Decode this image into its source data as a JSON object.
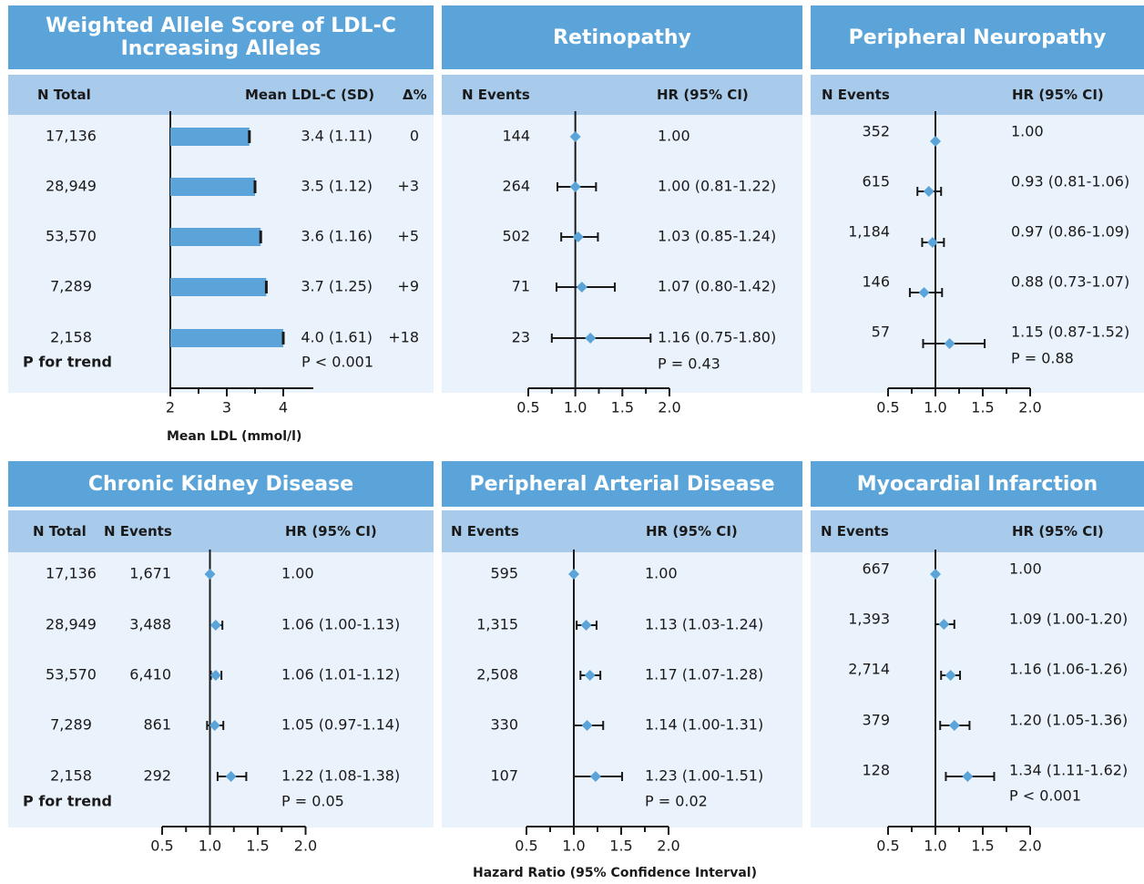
{
  "colors": {
    "title_bg": "#5aa4d9",
    "header_bg": "#a9cbeb",
    "panel_bg": "#eaf2fb",
    "marker": "#5aa4d9",
    "bar": "#5aa4d9"
  },
  "panels": {
    "allele": {
      "title": "Weighted Allele Score of LDL-C Increasing Alleles",
      "h1": "N Total",
      "h2": "Mean LDL-C (SD)",
      "h3": "Δ%",
      "footer": "P for trend",
      "pvalue": "P < 0.001",
      "xlabel": "Mean LDL (mmol/l)"
    },
    "ret": {
      "title": "Retinopathy",
      "h1": "N Events",
      "h2": "HR (95% CI)",
      "pvalue": "P = 0.43"
    },
    "neu": {
      "title": "Peripheral Neuropathy",
      "h1": "N Events",
      "h2": "HR (95% CI)",
      "pvalue": "P = 0.88"
    },
    "ckd": {
      "title": "Chronic Kidney Disease",
      "h1": "N Total",
      "h2": "N Events",
      "h3": "HR (95% CI)",
      "footer": "P for trend",
      "pvalue": "P = 0.05"
    },
    "pad": {
      "title": "Peripheral Arterial Disease",
      "h1": "N Events",
      "h2": "HR (95% CI)",
      "pvalue": "P = 0.02",
      "xlabel": "Hazard Ratio (95% Confidence Interval)"
    },
    "mi": {
      "title": "Myocardial Infarction",
      "h1": "N Events",
      "h2": "HR (95% CI)",
      "pvalue": "P < 0.001"
    }
  },
  "chart_data": [
    {
      "id": "allele",
      "type": "bar",
      "title": "Weighted Allele Score of LDL-C Increasing Alleles",
      "xlabel": "Mean LDL (mmol/l)",
      "xlim": [
        2,
        4.5
      ],
      "ticks": [
        "2",
        "3",
        "4"
      ],
      "tick_values": [
        2,
        3,
        4
      ],
      "rows": [
        {
          "n_total": "17,136",
          "mean": 3.4,
          "label": "3.4 (1.11)",
          "delta": "0"
        },
        {
          "n_total": "28,949",
          "mean": 3.5,
          "label": "3.5 (1.12)",
          "delta": "+3"
        },
        {
          "n_total": "53,570",
          "mean": 3.6,
          "label": "3.6 (1.16)",
          "delta": "+5"
        },
        {
          "n_total": "7,289",
          "mean": 3.7,
          "label": "3.7 (1.25)",
          "delta": "+9"
        },
        {
          "n_total": "2,158",
          "mean": 4.0,
          "label": "4.0 (1.61)",
          "delta": "+18"
        }
      ]
    },
    {
      "id": "ret",
      "type": "scatter",
      "title": "Retinopathy",
      "xlim": [
        0.5,
        2.0
      ],
      "ticks": [
        "0.5",
        "1.0",
        "1.5",
        "2.0"
      ],
      "tick_values": [
        0.5,
        1.0,
        1.5,
        2.0
      ],
      "rows": [
        {
          "events": "144",
          "hr": 1.0,
          "lo": null,
          "hi": null,
          "label": "1.00"
        },
        {
          "events": "264",
          "hr": 1.0,
          "lo": 0.81,
          "hi": 1.22,
          "label": "1.00 (0.81-1.22)"
        },
        {
          "events": "502",
          "hr": 1.03,
          "lo": 0.85,
          "hi": 1.24,
          "label": "1.03 (0.85-1.24)"
        },
        {
          "events": "71",
          "hr": 1.07,
          "lo": 0.8,
          "hi": 1.42,
          "label": "1.07 (0.80-1.42)"
        },
        {
          "events": "23",
          "hr": 1.16,
          "lo": 0.75,
          "hi": 1.8,
          "label": "1.16 (0.75-1.80)"
        }
      ]
    },
    {
      "id": "neu",
      "type": "scatter",
      "title": "Peripheral Neuropathy",
      "xlim": [
        0.5,
        2.0
      ],
      "ticks": [
        "0.5",
        "1.0",
        "1.5",
        "2.0"
      ],
      "tick_values": [
        0.5,
        1.0,
        1.5,
        2.0
      ],
      "rows": [
        {
          "events": "352",
          "hr": 1.0,
          "lo": null,
          "hi": null,
          "label": "1.00"
        },
        {
          "events": "615",
          "hr": 0.93,
          "lo": 0.81,
          "hi": 1.06,
          "label": "0.93 (0.81-1.06)"
        },
        {
          "events": "1,184",
          "hr": 0.97,
          "lo": 0.86,
          "hi": 1.09,
          "label": "0.97 (0.86-1.09)"
        },
        {
          "events": "146",
          "hr": 0.88,
          "lo": 0.73,
          "hi": 1.07,
          "label": "0.88 (0.73-1.07)"
        },
        {
          "events": "57",
          "hr": 1.15,
          "lo": 0.87,
          "hi": 1.52,
          "label": "1.15 (0.87-1.52)"
        }
      ]
    },
    {
      "id": "ckd",
      "type": "scatter",
      "title": "Chronic Kidney Disease",
      "xlim": [
        0.5,
        2.0
      ],
      "ticks": [
        "0.5",
        "1.0",
        "1.5",
        "2.0"
      ],
      "tick_values": [
        0.5,
        1.0,
        1.5,
        2.0
      ],
      "rows": [
        {
          "n_total": "17,136",
          "events": "1,671",
          "hr": 1.0,
          "lo": null,
          "hi": null,
          "label": "1.00"
        },
        {
          "n_total": "28,949",
          "events": "3,488",
          "hr": 1.06,
          "lo": 1.0,
          "hi": 1.13,
          "label": "1.06 (1.00-1.13)"
        },
        {
          "n_total": "53,570",
          "events": "6,410",
          "hr": 1.06,
          "lo": 1.01,
          "hi": 1.12,
          "label": "1.06 (1.01-1.12)"
        },
        {
          "n_total": "7,289",
          "events": "861",
          "hr": 1.05,
          "lo": 0.97,
          "hi": 1.14,
          "label": "1.05 (0.97-1.14)"
        },
        {
          "n_total": "2,158",
          "events": "292",
          "hr": 1.22,
          "lo": 1.08,
          "hi": 1.38,
          "label": "1.22 (1.08-1.38)"
        }
      ]
    },
    {
      "id": "pad",
      "type": "scatter",
      "title": "Peripheral Arterial Disease",
      "xlabel": "Hazard Ratio (95% Confidence Interval)",
      "xlim": [
        0.5,
        2.0
      ],
      "ticks": [
        "0.5",
        "1.0",
        "1.5",
        "2.0"
      ],
      "tick_values": [
        0.5,
        1.0,
        1.5,
        2.0
      ],
      "rows": [
        {
          "events": "595",
          "hr": 1.0,
          "lo": null,
          "hi": null,
          "label": "1.00"
        },
        {
          "events": "1,315",
          "hr": 1.13,
          "lo": 1.03,
          "hi": 1.24,
          "label": "1.13 (1.03-1.24)"
        },
        {
          "events": "2,508",
          "hr": 1.17,
          "lo": 1.07,
          "hi": 1.28,
          "label": "1.17 (1.07-1.28)"
        },
        {
          "events": "330",
          "hr": 1.14,
          "lo": 1.0,
          "hi": 1.31,
          "label": "1.14 (1.00-1.31)"
        },
        {
          "events": "107",
          "hr": 1.23,
          "lo": 1.0,
          "hi": 1.51,
          "label": "1.23 (1.00-1.51)"
        }
      ]
    },
    {
      "id": "mi",
      "type": "scatter",
      "title": "Myocardial Infarction",
      "xlim": [
        0.5,
        2.0
      ],
      "ticks": [
        "0.5",
        "1.0",
        "1.5",
        "2.0"
      ],
      "tick_values": [
        0.5,
        1.0,
        1.5,
        2.0
      ],
      "rows": [
        {
          "events": "667",
          "hr": 1.0,
          "lo": null,
          "hi": null,
          "label": "1.00"
        },
        {
          "events": "1,393",
          "hr": 1.09,
          "lo": 1.0,
          "hi": 1.2,
          "label": "1.09 (1.00-1.20)"
        },
        {
          "events": "2,714",
          "hr": 1.16,
          "lo": 1.06,
          "hi": 1.26,
          "label": "1.16 (1.06-1.26)"
        },
        {
          "events": "379",
          "hr": 1.2,
          "lo": 1.05,
          "hi": 1.36,
          "label": "1.20 (1.05-1.36)"
        },
        {
          "events": "128",
          "hr": 1.34,
          "lo": 1.11,
          "hi": 1.62,
          "label": "1.34 (1.11-1.62)"
        }
      ]
    }
  ]
}
